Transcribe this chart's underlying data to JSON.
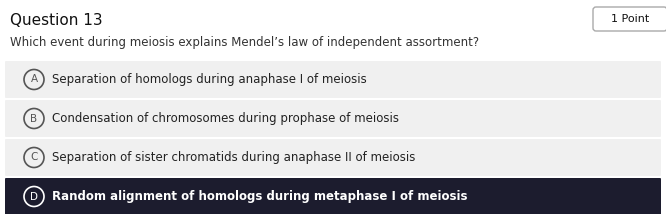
{
  "title": "Question 13",
  "points_label": "1 Point",
  "question": "Which event during meiosis explains Mendel’s law of independent assortment?",
  "options": [
    {
      "letter": "A",
      "text": "Separation of homologs during anaphase I of meiosis",
      "selected": false
    },
    {
      "letter": "B",
      "text": "Condensation of chromosomes during prophase of meiosis",
      "selected": false
    },
    {
      "letter": "C",
      "text": "Separation of sister chromatids during anaphase II of meiosis",
      "selected": false
    },
    {
      "letter": "D",
      "text": "Random alignment of homologs during metaphase I of meiosis",
      "selected": true
    }
  ],
  "bg_color": "#ffffff",
  "option_bg_color": "#f0f0f0",
  "selected_bg_color": "#1c1c2e",
  "selected_text_color": "#ffffff",
  "normal_text_color": "#222222",
  "title_color": "#111111",
  "question_color": "#333333",
  "circle_edge_color": "#555555",
  "selected_circle_edge_color": "#ffffff",
  "badge_edge_color": "#aaaaaa",
  "fig_width": 6.66,
  "fig_height": 2.14,
  "dpi": 100
}
